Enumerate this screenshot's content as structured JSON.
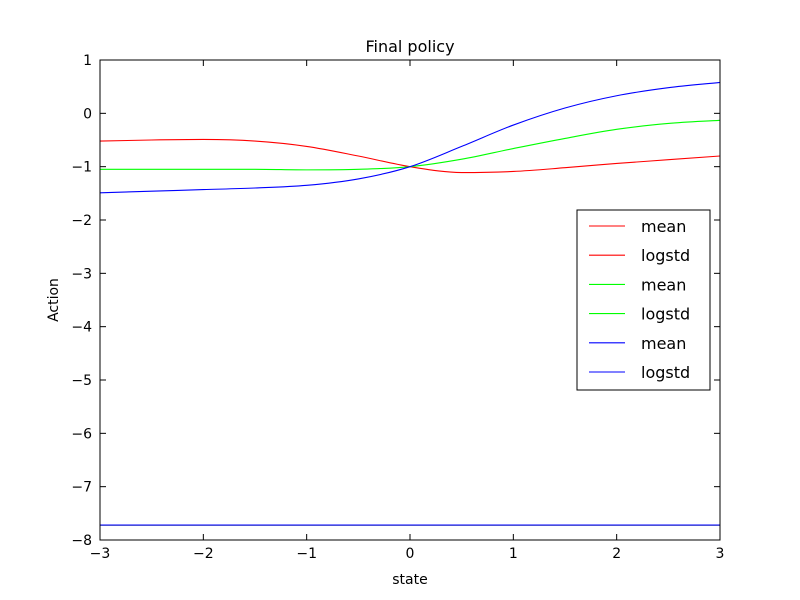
{
  "chart_data": {
    "type": "line",
    "title": "Final policy",
    "xlabel": "state",
    "ylabel": "Action",
    "xlim": [
      -3,
      3
    ],
    "ylim": [
      -8,
      1
    ],
    "xticks": [
      -3,
      -2,
      -1,
      0,
      1,
      2,
      3
    ],
    "xtick_labels": [
      "−3",
      "−2",
      "−1",
      "0",
      "1",
      "2",
      "3"
    ],
    "yticks": [
      1,
      0,
      -1,
      -2,
      -3,
      -4,
      -5,
      -6,
      -7,
      -8
    ],
    "ytick_labels": [
      "1",
      "0",
      "−1",
      "−2",
      "−3",
      "−4",
      "−5",
      "−6",
      "−7",
      "−8"
    ],
    "grid": false,
    "legend_position": "center-right",
    "series": [
      {
        "name": "mean",
        "color": "#ff0000",
        "x": [
          -3,
          -2.5,
          -2,
          -1.5,
          -1,
          -0.5,
          0,
          0.5,
          1,
          1.5,
          2,
          2.5,
          3
        ],
        "y": [
          -0.52,
          -0.5,
          -0.49,
          -0.52,
          -0.62,
          -0.8,
          -1.0,
          -1.11,
          -1.09,
          -1.02,
          -0.94,
          -0.87,
          -0.8
        ]
      },
      {
        "name": "logstd",
        "color": "#ff0000",
        "x": [
          -3,
          3
        ],
        "y": [
          -7.72,
          -7.72
        ]
      },
      {
        "name": "mean",
        "color": "#00ff00",
        "x": [
          -3,
          -2.5,
          -2,
          -1.5,
          -1,
          -0.5,
          0,
          0.5,
          1,
          1.5,
          2,
          2.5,
          3
        ],
        "y": [
          -1.05,
          -1.05,
          -1.05,
          -1.05,
          -1.06,
          -1.05,
          -1.0,
          -0.86,
          -0.66,
          -0.47,
          -0.3,
          -0.19,
          -0.13
        ]
      },
      {
        "name": "logstd",
        "color": "#00ff00",
        "x": [
          -3,
          3
        ],
        "y": [
          -7.72,
          -7.72
        ]
      },
      {
        "name": "mean",
        "color": "#0000ff",
        "x": [
          -3,
          -2.5,
          -2,
          -1.5,
          -1,
          -0.5,
          0,
          0.5,
          1,
          1.5,
          2,
          2.5,
          3
        ],
        "y": [
          -1.49,
          -1.46,
          -1.43,
          -1.4,
          -1.35,
          -1.23,
          -1.0,
          -0.62,
          -0.22,
          0.1,
          0.33,
          0.48,
          0.58
        ]
      },
      {
        "name": "logstd",
        "color": "#0000ff",
        "x": [
          -3,
          3
        ],
        "y": [
          -7.72,
          -7.72
        ]
      }
    ]
  }
}
